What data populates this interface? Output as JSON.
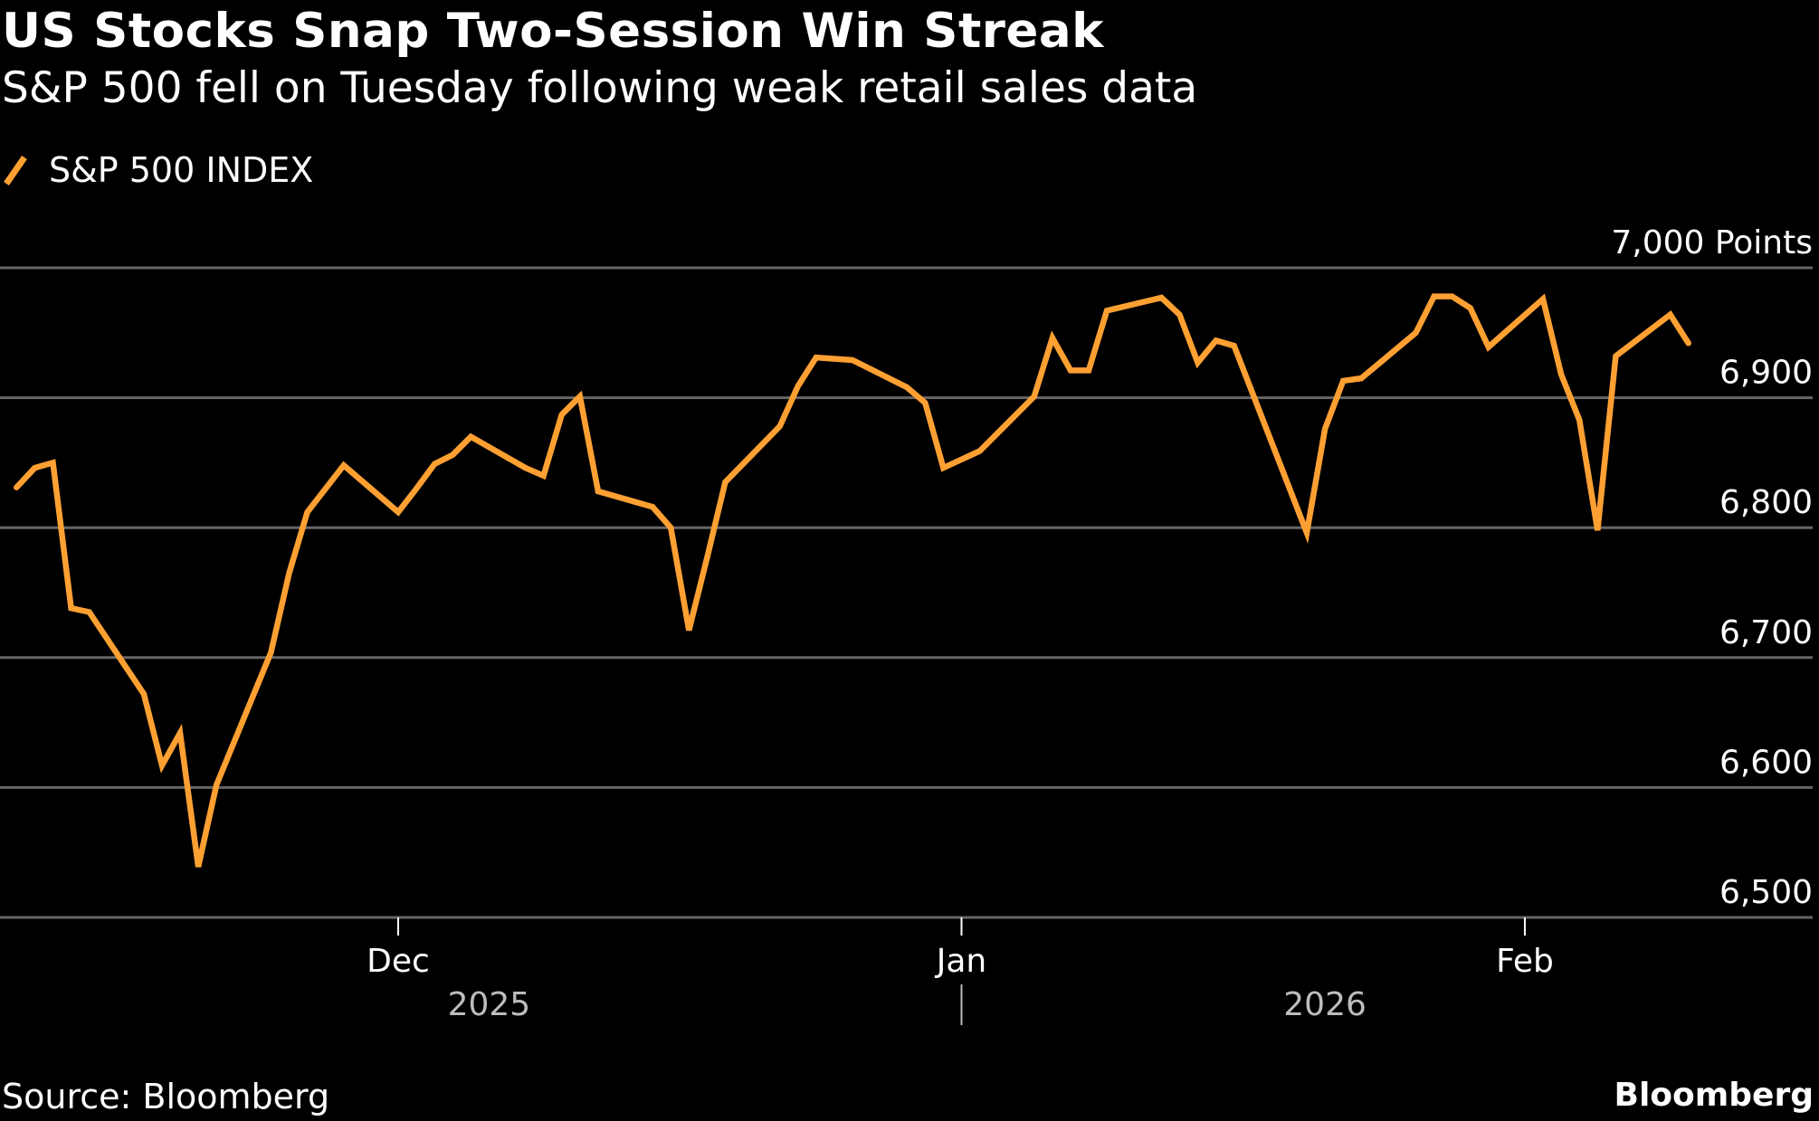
{
  "header": {
    "title": "US Stocks Snap Two-Session Win Streak",
    "subtitle": "S&P 500 fell on Tuesday following weak retail sales data"
  },
  "footer": {
    "source": "Source: Bloomberg",
    "brand": "Bloomberg"
  },
  "colors": {
    "background": "#000000",
    "series": "#FFA032",
    "grid": "#666666",
    "text": "#FFFFFF",
    "year_text": "#BDBDBD"
  },
  "chart_data": {
    "type": "line",
    "title": "US Stocks Snap Two-Session Win Streak",
    "subtitle": "S&P 500 fell on Tuesday following weak retail sales data",
    "xlabel": "",
    "ylabel": "Points",
    "ylim": [
      6500,
      7000
    ],
    "yticks": [
      6500,
      6600,
      6700,
      6800,
      6900,
      7000
    ],
    "ytick_labels": [
      "6,500",
      "6,600",
      "6,700",
      "6,800",
      "6,900",
      "7,000 Points"
    ],
    "xticks": [
      {
        "date": "2025-12-01",
        "label": "Dec"
      },
      {
        "date": "2026-01-01",
        "label": "Jan"
      },
      {
        "date": "2026-02-01",
        "label": "Feb"
      }
    ],
    "year_labels": [
      {
        "label": "2025",
        "center_date": "2025-12-06"
      },
      {
        "label": "2026",
        "center_date": "2026-01-21"
      }
    ],
    "year_separator_date": "2026-01-01",
    "xrange": [
      "2025-11-09",
      "2026-02-16"
    ],
    "grid": true,
    "legend": "top-left",
    "series": [
      {
        "name": "S&P 500 INDEX",
        "x": [
          "2025-11-10",
          "2025-11-11",
          "2025-11-12",
          "2025-11-13",
          "2025-11-14",
          "2025-11-17",
          "2025-11-18",
          "2025-11-19",
          "2025-11-20",
          "2025-11-21",
          "2025-11-24",
          "2025-11-25",
          "2025-11-26",
          "2025-11-28",
          "2025-12-01",
          "2025-12-02",
          "2025-12-03",
          "2025-12-04",
          "2025-12-05",
          "2025-12-08",
          "2025-12-09",
          "2025-12-10",
          "2025-12-11",
          "2025-12-12",
          "2025-12-15",
          "2025-12-16",
          "2025-12-17",
          "2025-12-18",
          "2025-12-19",
          "2025-12-22",
          "2025-12-23",
          "2025-12-24",
          "2025-12-26",
          "2025-12-29",
          "2025-12-30",
          "2025-12-31",
          "2026-01-02",
          "2026-01-05",
          "2026-01-06",
          "2026-01-07",
          "2026-01-08",
          "2026-01-09",
          "2026-01-12",
          "2026-01-13",
          "2026-01-14",
          "2026-01-15",
          "2026-01-16",
          "2026-01-20",
          "2026-01-21",
          "2026-01-22",
          "2026-01-23",
          "2026-01-26",
          "2026-01-27",
          "2026-01-28",
          "2026-01-29",
          "2026-01-30",
          "2026-02-02",
          "2026-02-03",
          "2026-02-04",
          "2026-02-05",
          "2026-02-06",
          "2026-02-09",
          "2026-02-10"
        ],
        "values": [
          6831,
          6846,
          6850,
          6738,
          6735,
          6672,
          6617,
          6642,
          6539,
          6602,
          6704,
          6765,
          6812,
          6848,
          6812,
          6830,
          6849,
          6856,
          6870,
          6846,
          6840,
          6887,
          6901,
          6828,
          6816,
          6800,
          6721,
          6777,
          6835,
          6878,
          6909,
          6931,
          6929,
          6908,
          6896,
          6846,
          6859,
          6901,
          6946,
          6921,
          6921,
          6967,
          6977,
          6964,
          6927,
          6944,
          6940,
          6796,
          6876,
          6913,
          6915,
          6950,
          6978,
          6978,
          6969,
          6939,
          6976,
          6918,
          6883,
          6798,
          6932,
          6964,
          6942
        ]
      }
    ]
  }
}
